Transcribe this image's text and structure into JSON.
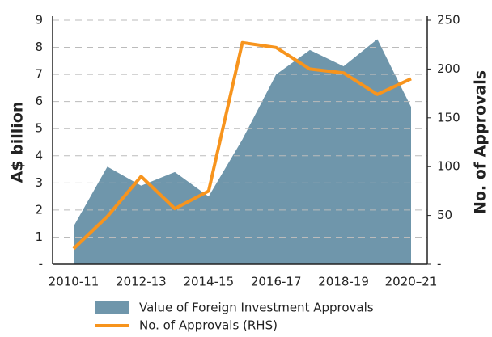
{
  "chart_data": {
    "type": "area-line",
    "ylabel": "A$ billion",
    "y2label": "No. of Approvals",
    "categories": [
      "2010-11",
      null,
      "2012-13",
      null,
      "2014-15",
      null,
      "2016-17",
      null,
      "2018-19",
      null,
      "2020–21"
    ],
    "series": [
      {
        "name": "Value of Foreign Investment Approvals",
        "type": "area",
        "color": "#6f96ab",
        "values": [
          1.4,
          3.6,
          2.9,
          3.4,
          2.5,
          4.6,
          7.0,
          7.9,
          7.3,
          8.3,
          5.8
        ]
      },
      {
        "name": "No. of Approvals (RHS)",
        "type": "line",
        "axis": "y2",
        "color": "#f7941d",
        "values": [
          16,
          49,
          90,
          57,
          75,
          227,
          222,
          200,
          196,
          174,
          190
        ]
      }
    ],
    "ylim": [
      0,
      9
    ],
    "yticks": [
      {
        "value": 0,
        "label": "-"
      },
      1,
      2,
      3,
      4,
      5,
      6,
      7,
      8,
      9
    ],
    "y2lim": [
      0,
      250
    ],
    "y2ticks": [
      {
        "value": 0,
        "label": "-"
      },
      50,
      100,
      150,
      200,
      250
    ],
    "grid": true
  }
}
